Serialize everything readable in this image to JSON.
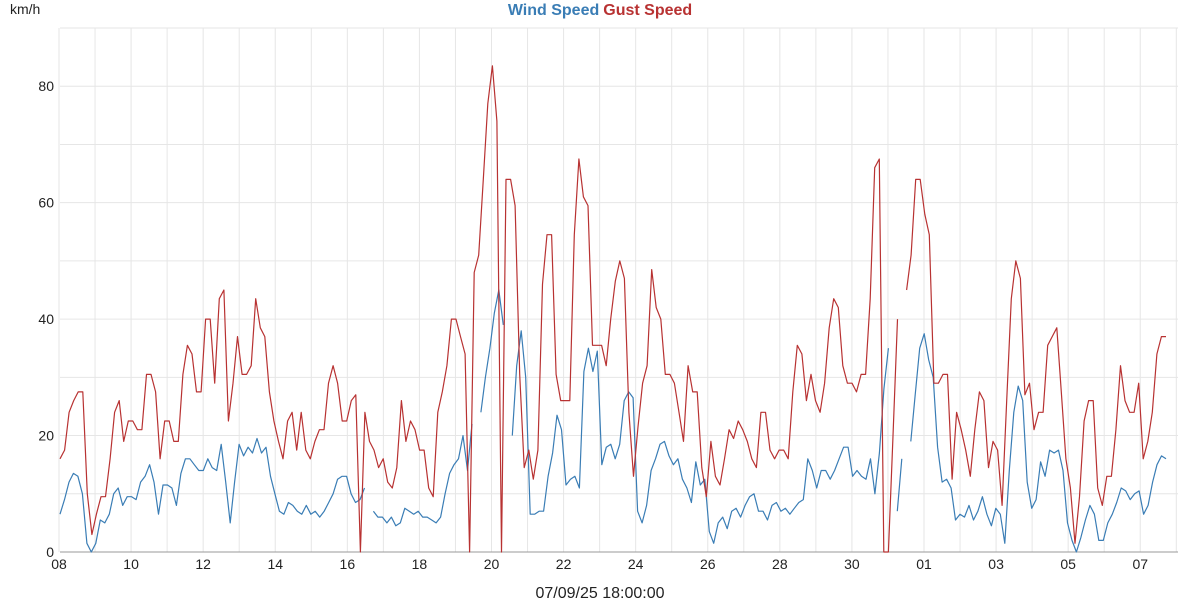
{
  "chart_data": {
    "type": "line",
    "title": "",
    "ylabel": "km/h",
    "ylim": [
      0,
      90
    ],
    "yticks": [
      0,
      20,
      40,
      60,
      80
    ],
    "xtick_labels": [
      "08",
      "10",
      "12",
      "14",
      "16",
      "18",
      "20",
      "22",
      "24",
      "26",
      "28",
      "30",
      "01",
      "03",
      "05",
      "07"
    ],
    "footer": "07/09/25 18:00:00",
    "grid": true,
    "legend_position": "top-center",
    "series": [
      {
        "name": "Wind Speed",
        "color": "#3a7db5",
        "values": [
          6.5,
          9,
          12,
          13.5,
          13,
          10,
          1.5,
          0,
          1.5,
          5.5,
          5,
          6.5,
          10,
          11,
          8,
          9.5,
          9.5,
          9,
          12,
          13,
          15,
          12,
          6.5,
          11.5,
          11.5,
          11,
          8,
          13.5,
          16,
          16,
          15,
          14,
          14,
          16,
          14.5,
          14,
          18.5,
          12,
          5,
          12,
          18.5,
          16.5,
          18,
          17,
          19.5,
          17,
          18,
          13,
          10,
          7,
          6.5,
          8.5,
          8,
          7,
          6.5,
          8,
          6.5,
          7,
          6,
          7,
          8.5,
          10,
          12.5,
          13,
          13,
          10,
          8.5,
          9,
          11,
          null,
          7,
          6,
          6,
          5,
          6,
          4.5,
          5,
          7.5,
          7,
          6.5,
          7,
          6,
          6,
          5.5,
          5,
          6,
          10,
          13.5,
          15,
          16,
          20,
          14,
          22,
          null,
          24,
          30,
          35,
          41,
          45,
          39,
          null,
          20,
          32,
          38,
          30,
          6.5,
          6.5,
          7,
          7,
          13,
          17,
          23.5,
          21,
          11.5,
          12.5,
          13,
          11,
          31,
          35,
          31,
          34.5,
          15,
          18,
          18.5,
          16,
          18.5,
          26,
          27.5,
          26.5,
          7,
          5,
          8,
          14,
          16,
          18.5,
          19,
          16.5,
          15,
          16,
          12.5,
          11,
          8.5,
          15.5,
          11.5,
          12.5,
          3.5,
          1.5,
          5,
          6,
          4,
          7,
          7.5,
          6,
          8,
          9.5,
          10,
          7,
          7,
          5.5,
          8,
          8.5,
          7,
          7.5,
          6.5,
          7.5,
          8.5,
          9,
          16,
          14,
          11,
          14,
          14,
          12.5,
          14,
          16,
          18,
          18,
          13,
          14,
          13,
          12.5,
          16,
          10,
          17,
          28,
          35,
          null,
          7,
          16,
          null,
          19,
          27,
          35,
          37.5,
          33,
          30,
          18,
          12,
          12.5,
          11,
          5.5,
          6.5,
          6,
          8,
          5.5,
          7,
          9.5,
          6.5,
          4.5,
          7.5,
          6.5,
          1.5,
          14,
          24,
          28.5,
          26,
          12,
          7.5,
          9,
          15.5,
          13,
          17.5,
          17,
          17.5,
          14,
          5,
          2,
          0,
          2.5,
          5.5,
          8,
          6.5,
          2,
          2,
          5,
          6.5,
          8.5,
          11,
          10.5,
          9,
          10,
          10.5,
          6.5,
          8,
          12,
          15,
          16.5,
          16
        ]
      },
      {
        "name": "Gust Speed",
        "color": "#b83232",
        "values": [
          16,
          17.5,
          24,
          26,
          27.5,
          27.5,
          10,
          3,
          6.5,
          9.5,
          9.5,
          16,
          24,
          26,
          19,
          22.5,
          22.5,
          21,
          21,
          30.5,
          30.5,
          27.5,
          16,
          22.5,
          22.5,
          19,
          19,
          30.5,
          35.5,
          34,
          27.5,
          27.5,
          40,
          40,
          29,
          43.5,
          45,
          22.5,
          29,
          37,
          30.5,
          30.5,
          32,
          43.5,
          38.5,
          37,
          27.5,
          22.5,
          19,
          16,
          22.5,
          24,
          17.5,
          24,
          17.5,
          16,
          19,
          21,
          21,
          29,
          32,
          29,
          22.5,
          22.5,
          26,
          27,
          0,
          24,
          19,
          17.5,
          14.5,
          16,
          12,
          11,
          14.5,
          26,
          19,
          22.5,
          21,
          17.5,
          17.5,
          11,
          9.5,
          24,
          27.5,
          32,
          40,
          40,
          37,
          34,
          0,
          48,
          51,
          64,
          77,
          83.5,
          74,
          0,
          64,
          64,
          59.5,
          30.5,
          14.5,
          17.5,
          12.5,
          17.5,
          46,
          54.5,
          54.5,
          30.5,
          26,
          26,
          26,
          54.5,
          67.5,
          61,
          59.5,
          35.5,
          35.5,
          35.5,
          32,
          40,
          46.5,
          50,
          47,
          24,
          13,
          21.5,
          29,
          32,
          48.5,
          42,
          40,
          30.5,
          30.5,
          29,
          24,
          19,
          32,
          27.5,
          27.5,
          14.5,
          9.5,
          19,
          13,
          11.5,
          16,
          21,
          19.5,
          22.5,
          21,
          19,
          16,
          14.5,
          24,
          24,
          17.5,
          16,
          17.5,
          17.5,
          16,
          27.5,
          35.5,
          34,
          26,
          30.5,
          26,
          24,
          29,
          38.5,
          43.5,
          42,
          32,
          29,
          29,
          27.5,
          30.5,
          30.5,
          43.5,
          66,
          67.5,
          0,
          0,
          19.5,
          40,
          null,
          45,
          51,
          64,
          64,
          58,
          54.5,
          29,
          29,
          30.5,
          30.5,
          12.5,
          24,
          21,
          17.5,
          13,
          21,
          27.5,
          26,
          14.5,
          19,
          17.5,
          8,
          26,
          43.5,
          50,
          47,
          27,
          29,
          21,
          24,
          24,
          35.5,
          37,
          38.5,
          27.5,
          16,
          11,
          1.5,
          9.5,
          22.5,
          26,
          26,
          11,
          8,
          13,
          13,
          21,
          32,
          26,
          24,
          24,
          29,
          16,
          19,
          24,
          34,
          37,
          37
        ]
      }
    ]
  }
}
